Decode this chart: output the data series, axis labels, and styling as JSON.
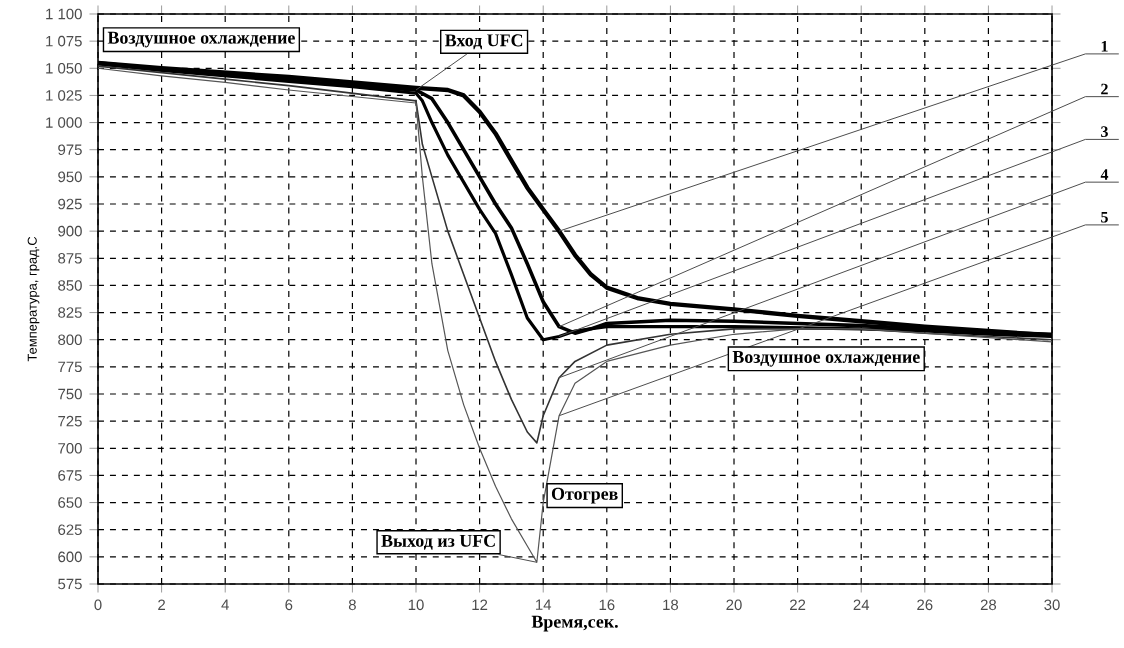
{
  "chart_data": {
    "type": "line",
    "xlabel": "Время,сек.",
    "ylabel": "Температура, град.С",
    "xlim": [
      0,
      30
    ],
    "xticks": [
      0,
      2,
      4,
      6,
      8,
      10,
      12,
      14,
      16,
      18,
      20,
      22,
      24,
      26,
      28,
      30
    ],
    "ylim": [
      575,
      1100
    ],
    "yticks": [
      {
        "value": 575,
        "label": "575"
      },
      {
        "value": 600,
        "label": "600"
      },
      {
        "value": 625,
        "label": "625"
      },
      {
        "value": 650,
        "label": "650"
      },
      {
        "value": 675,
        "label": "675"
      },
      {
        "value": 700,
        "label": "700"
      },
      {
        "value": 725,
        "label": "725"
      },
      {
        "value": 750,
        "label": "750"
      },
      {
        "value": 775,
        "label": "775"
      },
      {
        "value": 800,
        "label": "800"
      },
      {
        "value": 825,
        "label": "825"
      },
      {
        "value": 850,
        "label": "850"
      },
      {
        "value": 875,
        "label": "875"
      },
      {
        "value": 900,
        "label": "900"
      },
      {
        "value": 925,
        "label": "925"
      },
      {
        "value": 950,
        "label": "950"
      },
      {
        "value": 975,
        "label": "975"
      },
      {
        "value": 1000,
        "label": "1 000"
      },
      {
        "value": 1025,
        "label": "1 025"
      },
      {
        "value": 1050,
        "label": "1 050"
      },
      {
        "value": 1075,
        "label": "1 075"
      },
      {
        "value": 1100,
        "label": "1 100"
      }
    ],
    "grid": true,
    "line_style": "solid",
    "marker": "none",
    "series": [
      {
        "name": "1",
        "color": "#000000",
        "x": [
          0,
          2,
          4,
          6,
          8,
          10,
          11,
          11.5,
          12,
          12.5,
          13,
          13.5,
          14,
          14.5,
          15,
          15.5,
          16,
          17,
          18,
          20,
          22,
          24,
          26,
          28,
          30
        ],
        "values": [
          1055,
          1050,
          1046,
          1042,
          1037,
          1032,
          1030,
          1025,
          1010,
          990,
          965,
          940,
          920,
          900,
          878,
          860,
          848,
          838,
          833,
          828,
          822,
          817,
          812,
          808,
          804
        ]
      },
      {
        "name": "2",
        "color": "#000000",
        "x": [
          0,
          2,
          4,
          6,
          8,
          10,
          10.5,
          11,
          11.5,
          12,
          12.5,
          13,
          13.5,
          14,
          14.5,
          15,
          15.5,
          16,
          18,
          20,
          22,
          24,
          26,
          28,
          30
        ],
        "values": [
          1055,
          1049,
          1044,
          1039,
          1034,
          1030,
          1022,
          1000,
          975,
          950,
          925,
          903,
          870,
          835,
          812,
          806,
          810,
          815,
          818,
          817,
          815,
          813,
          810,
          807,
          805
        ]
      },
      {
        "name": "3",
        "color": "#000000",
        "x": [
          0,
          2,
          4,
          6,
          8,
          10,
          10.2,
          10.5,
          11,
          11.5,
          12,
          12.5,
          13,
          13.5,
          14,
          14.5,
          15,
          16,
          18,
          20,
          22,
          24,
          26,
          28,
          30
        ],
        "values": [
          1054,
          1048,
          1043,
          1038,
          1033,
          1027,
          1020,
          1000,
          970,
          945,
          920,
          898,
          860,
          820,
          800,
          803,
          808,
          812,
          812,
          812,
          811,
          810,
          808,
          805,
          803
        ]
      },
      {
        "name": "4",
        "color": "#333333",
        "x": [
          0,
          2,
          4,
          6,
          8,
          10,
          10.2,
          10.5,
          11,
          11.5,
          12,
          12.5,
          13,
          13.5,
          13.8,
          14,
          14.5,
          15,
          16,
          18,
          20,
          22,
          24,
          26,
          28,
          30
        ],
        "values": [
          1052,
          1046,
          1040,
          1034,
          1027,
          1020,
          980,
          950,
          900,
          860,
          820,
          780,
          745,
          715,
          705,
          730,
          765,
          780,
          795,
          805,
          810,
          810,
          810,
          806,
          803,
          800
        ]
      },
      {
        "name": "5",
        "color": "#555555",
        "x": [
          0,
          2,
          4,
          6,
          8,
          10,
          10.2,
          10.5,
          11,
          11.5,
          12,
          12.5,
          13,
          13.5,
          13.8,
          14,
          14.5,
          15,
          16,
          18,
          20,
          22,
          24,
          26,
          28,
          30
        ],
        "values": [
          1050,
          1043,
          1037,
          1030,
          1024,
          1018,
          950,
          870,
          790,
          740,
          700,
          665,
          635,
          610,
          595,
          650,
          730,
          760,
          780,
          795,
          805,
          810,
          810,
          806,
          802,
          798
        ]
      }
    ],
    "annotations": [
      "Воздушное охлаждение",
      {
        "text": "Вход  UFC",
        "x": 10,
        "y": 1030
      },
      "Воздушное охлаждение",
      "Отогрев",
      {
        "text": "Выход из  UFC",
        "x": 13.8,
        "y": 595
      }
    ]
  }
}
